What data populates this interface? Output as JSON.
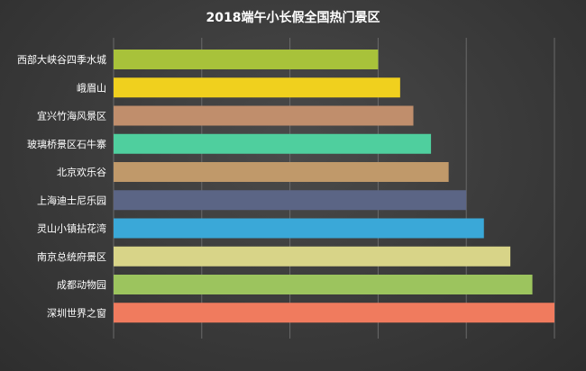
{
  "chart_data": {
    "type": "bar",
    "orientation": "horizontal",
    "title": "2018端午小长假全国热门景区",
    "xlabel": "",
    "ylabel": "",
    "xlim": [
      0,
      100
    ],
    "grid": true,
    "categories": [
      "西部大峡谷四季水城",
      "峨眉山",
      "宜兴竹海风景区",
      "玻璃桥景区石牛寨",
      "北京欢乐谷",
      "上海迪士尼乐园",
      "灵山小镇拈花湾",
      "南京总统府景区",
      "成都动物园",
      "深圳世界之窗"
    ],
    "values": [
      60,
      65,
      68,
      72,
      76,
      80,
      84,
      90,
      95,
      100
    ],
    "colors": [
      "#a8c23a",
      "#f0d01e",
      "#c08e6c",
      "#4fcf9e",
      "#c0996a",
      "#5b6585",
      "#3aa8d8",
      "#d8d488",
      "#9cc45e",
      "#f07b5e"
    ]
  }
}
